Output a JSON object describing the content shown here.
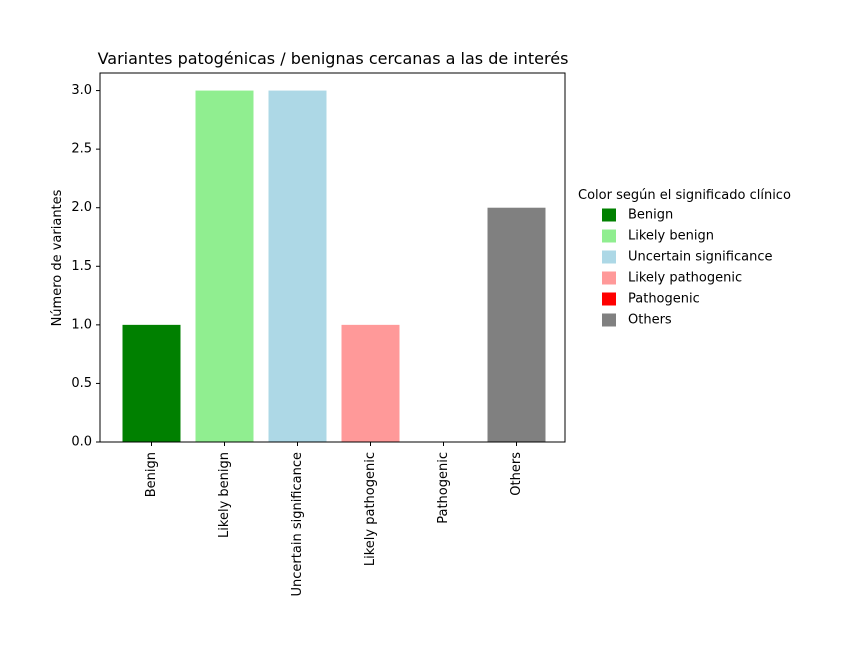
{
  "chart_data": {
    "type": "bar",
    "title": "Variantes patogénicas / benignas cercanas a las de interés",
    "xlabel": "",
    "ylabel": "Número de variantes",
    "categories": [
      "Benign",
      "Likely benign",
      "Uncertain significance",
      "Likely pathogenic",
      "Pathogenic",
      "Others"
    ],
    "values": [
      1,
      3,
      3,
      1,
      0,
      2
    ],
    "colors": [
      "#008000",
      "#90ee90",
      "#add8e6",
      "#ff9999",
      "#ff0000",
      "#808080"
    ],
    "ylim": [
      0,
      3.15
    ],
    "yticks": [
      "0.0",
      "0.5",
      "1.0",
      "1.5",
      "2.0",
      "2.5",
      "3.0"
    ],
    "grid": false,
    "legend": {
      "title": "Color según el significado clínico",
      "placement": "outside-right",
      "entries": [
        "Benign",
        "Likely benign",
        "Uncertain significance",
        "Likely pathogenic",
        "Pathogenic",
        "Others"
      ]
    }
  }
}
